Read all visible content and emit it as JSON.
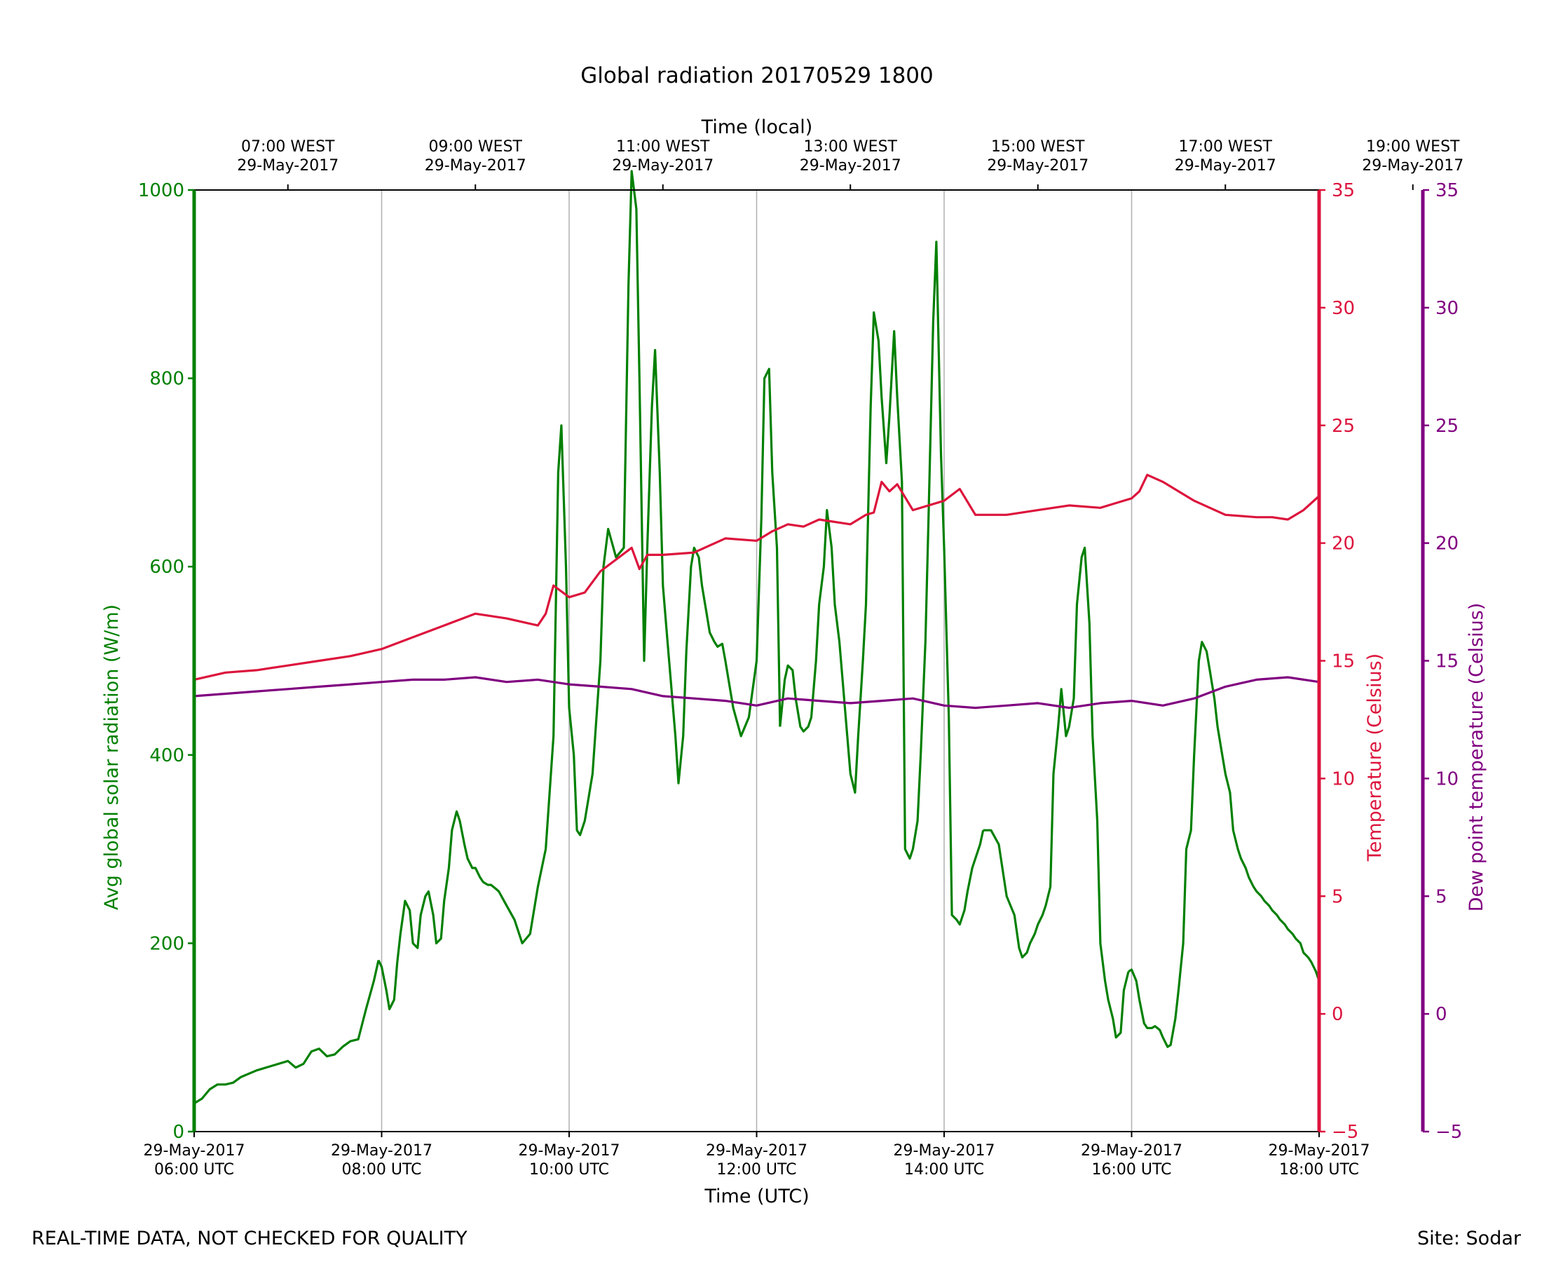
{
  "footer": {
    "left_note": "REAL-TIME DATA, NOT CHECKED FOR QUALITY",
    "site": "Site: Sodar"
  },
  "colors": {
    "radiation": "#008000",
    "temperature": "#dc143c",
    "dewpoint": "#800080",
    "grid": "#b0b0b0",
    "axis": "#000000"
  },
  "chart_data": {
    "type": "line",
    "title": "Global radiation 20170529 1800",
    "xlabel": "Time (UTC)",
    "x2label": "Time (local)",
    "xlim": [
      "2017-05-29 06:00 UTC",
      "2017-05-29 18:00 UTC"
    ],
    "grid": "vertical lines at bottom ticks",
    "x_ticks": [
      {
        "time": "2017-05-29 06:00",
        "date": "29-May-2017",
        "label": "06:00 UTC"
      },
      {
        "time": "2017-05-29 08:00",
        "date": "29-May-2017",
        "label": "08:00 UTC"
      },
      {
        "time": "2017-05-29 10:00",
        "date": "29-May-2017",
        "label": "10:00 UTC"
      },
      {
        "time": "2017-05-29 12:00",
        "date": "29-May-2017",
        "label": "12:00 UTC"
      },
      {
        "time": "2017-05-29 14:00",
        "date": "29-May-2017",
        "label": "14:00 UTC"
      },
      {
        "time": "2017-05-29 16:00",
        "date": "29-May-2017",
        "label": "16:00 UTC"
      },
      {
        "time": "2017-05-29 18:00",
        "date": "29-May-2017",
        "label": "18:00 UTC"
      }
    ],
    "x2_ticks": [
      {
        "time": "2017-05-29 07:00",
        "label": "07:00 WEST",
        "date": "29-May-2017"
      },
      {
        "time": "2017-05-29 09:00",
        "label": "09:00 WEST",
        "date": "29-May-2017"
      },
      {
        "time": "2017-05-29 11:00",
        "label": "11:00 WEST",
        "date": "29-May-2017"
      },
      {
        "time": "2017-05-29 13:00",
        "label": "13:00 WEST",
        "date": "29-May-2017"
      },
      {
        "time": "2017-05-29 15:00",
        "label": "15:00 WEST",
        "date": "29-May-2017"
      },
      {
        "time": "2017-05-29 17:00",
        "label": "17:00 WEST",
        "date": "29-May-2017"
      },
      {
        "time": "2017-05-29 19:00",
        "label": "19:00 WEST",
        "date": "29-May-2017"
      }
    ],
    "axes": {
      "radiation": {
        "label": "Avg global solar radiation (W/m)",
        "ylim": [
          0,
          1000
        ],
        "ticks": [
          "0",
          "200",
          "400",
          "600",
          "800",
          "1000"
        ],
        "side": "left"
      },
      "temperature": {
        "label": "Temperature (Celsius)",
        "ylim": [
          -5,
          35
        ],
        "ticks": [
          "−5",
          "0",
          "5",
          "10",
          "15",
          "20",
          "25",
          "30",
          "35"
        ],
        "side": "right"
      },
      "dewpoint": {
        "label": "Dew point temperature (Celsius)",
        "ylim": [
          -5,
          35
        ],
        "ticks": [
          "−5",
          "0",
          "5",
          "10",
          "15",
          "20",
          "25",
          "30",
          "35"
        ],
        "side": "right-outer"
      }
    },
    "series": [
      {
        "axis": "radiation",
        "segments": [
          {
            "x": [
              "06:00",
              "06:05",
              "06:10",
              "06:15",
              "06:20",
              "06:25",
              "06:30",
              "06:40",
              "06:50",
              "07:00",
              "07:05",
              "07:10",
              "07:15",
              "07:20",
              "07:25",
              "07:30",
              "07:35",
              "07:40",
              "07:45",
              "07:50",
              "07:55",
              "07:58"
            ],
            "y": [
              30,
              35,
              45,
              50,
              50,
              52,
              58,
              65,
              70,
              75,
              68,
              72,
              85,
              88,
              80,
              82,
              90,
              96,
              98,
              130,
              160,
              182
            ]
          },
          {
            "x": [
              "07:58",
              "08:00",
              "08:03",
              "08:05",
              "08:08",
              "08:10",
              "08:12",
              "08:15",
              "08:18",
              "08:20",
              "08:23",
              "08:25",
              "08:28",
              "08:30",
              "08:33",
              "08:35",
              "08:38",
              "08:40",
              "08:43",
              "08:45",
              "08:48",
              "08:50",
              "08:53",
              "08:55",
              "08:58",
              "09:00",
              "09:03",
              "09:05",
              "09:08",
              "09:10",
              "09:13",
              "09:15",
              "09:20",
              "09:25",
              "09:30",
              "09:35",
              "09:40",
              "09:45"
            ],
            "y": [
              182,
              175,
              150,
              130,
              140,
              180,
              210,
              245,
              235,
              200,
              195,
              230,
              250,
              255,
              230,
              200,
              205,
              245,
              280,
              320,
              340,
              330,
              305,
              290,
              280,
              280,
              270,
              265,
              262,
              262,
              258,
              255,
              240,
              225,
              200,
              210,
              260,
              300
            ]
          },
          {
            "x": [
              "09:45",
              "09:50",
              "09:53",
              "09:55",
              "09:58",
              "10:00",
              "10:03",
              "10:05",
              "10:07",
              "10:10",
              "10:15",
              "10:20",
              "10:22",
              "10:25",
              "10:30",
              "10:35",
              "10:38",
              "10:40",
              "10:43",
              "10:45"
            ],
            "y": [
              300,
              420,
              700,
              750,
              600,
              450,
              400,
              320,
              315,
              330,
              380,
              500,
              600,
              640,
              610,
              620,
              900,
              1020,
              980,
              800
            ]
          },
          {
            "x": [
              "10:45",
              "10:48",
              "10:50",
              "10:53",
              "10:55",
              "10:58",
              "11:00",
              "11:03",
              "11:05",
              "11:08",
              "11:10",
              "11:13",
              "11:15",
              "11:18",
              "11:20",
              "11:23",
              "11:25",
              "11:28",
              "11:30",
              "11:33",
              "11:35",
              "11:38",
              "11:40",
              "11:45",
              "11:50",
              "11:55",
              "12:00",
              "12:03",
              "12:05",
              "12:08",
              "12:10",
              "12:13",
              "12:15"
            ],
            "y": [
              800,
              500,
              620,
              770,
              830,
              700,
              580,
              520,
              480,
              420,
              370,
              420,
              510,
              600,
              620,
              610,
              580,
              550,
              530,
              520,
              515,
              518,
              500,
              450,
              420,
              440,
              500,
              650,
              800,
              810,
              700,
              620,
              430
            ]
          },
          {
            "x": [
              "12:15",
              "12:18",
              "12:20",
              "12:23",
              "12:25",
              "12:28",
              "12:30",
              "12:33",
              "12:35",
              "12:38",
              "12:40",
              "12:43",
              "12:45",
              "12:48",
              "12:50",
              "12:53",
              "12:55",
              "12:58",
              "13:00",
              "13:03",
              "13:05",
              "13:08",
              "13:10"
            ],
            "y": [
              430,
              480,
              495,
              490,
              460,
              430,
              425,
              430,
              440,
              500,
              560,
              600,
              660,
              620,
              560,
              520,
              480,
              420,
              380,
              360,
              420,
              500,
              560
            ]
          },
          {
            "x": [
              "13:10",
              "13:13",
              "13:15",
              "13:18",
              "13:20",
              "13:23",
              "13:25",
              "13:28",
              "13:30",
              "13:33",
              "13:35",
              "13:38",
              "13:40",
              "13:43",
              "13:45",
              "13:48",
              "13:50",
              "13:53",
              "13:55",
              "13:58",
              "14:00",
              "14:03",
              "14:05",
              "14:08",
              "14:10",
              "14:13",
              "14:15",
              "14:18",
              "14:20",
              "14:23",
              "14:25"
            ],
            "y": [
              560,
              770,
              870,
              840,
              780,
              710,
              760,
              850,
              780,
              690,
              300,
              290,
              300,
              330,
              400,
              520,
              650,
              860,
              945,
              720,
              620,
              440,
              230,
              225,
              220,
              235,
              255,
              280,
              290,
              305,
              320
            ]
          },
          {
            "x": [
              "14:25",
              "14:30",
              "14:35",
              "14:40",
              "14:45",
              "14:48",
              "14:50",
              "14:53",
              "14:55",
              "14:58",
              "15:00",
              "15:03",
              "15:05",
              "15:08",
              "15:10",
              "15:13",
              "15:15",
              "15:18",
              "15:20",
              "15:23",
              "15:25",
              "15:28",
              "15:30",
              "15:33",
              "15:35",
              "15:38",
              "15:40",
              "15:43",
              "15:45",
              "15:48",
              "15:50",
              "15:53",
              "15:55",
              "15:58"
            ],
            "y": [
              320,
              320,
              305,
              250,
              230,
              195,
              185,
              190,
              200,
              210,
              220,
              230,
              240,
              260,
              380,
              430,
              470,
              420,
              430,
              460,
              560,
              610,
              620,
              540,
              420,
              330,
              200,
              160,
              140,
              120,
              100,
              105,
              150,
              170
            ]
          },
          {
            "x": [
              "15:58",
              "16:00",
              "16:03",
              "16:05",
              "16:08",
              "16:10",
              "16:13",
              "16:15",
              "16:18",
              "16:20",
              "16:23",
              "16:25",
              "16:28",
              "16:30",
              "16:33",
              "16:35",
              "16:38",
              "16:40",
              "16:43",
              "16:45",
              "16:48",
              "16:50",
              "16:53",
              "16:55",
              "16:58",
              "17:00",
              "17:03",
              "17:05",
              "17:08",
              "17:10",
              "17:13",
              "17:15",
              "17:18",
              "17:20",
              "17:23",
              "17:25",
              "17:28",
              "17:30",
              "17:33",
              "17:35",
              "17:38",
              "17:40",
              "17:43",
              "17:45",
              "17:48",
              "17:50",
              "17:53",
              "17:55",
              "17:58",
              "18:00"
            ],
            "y": [
              170,
              172,
              160,
              140,
              115,
              110,
              110,
              112,
              108,
              100,
              90,
              92,
              120,
              150,
              200,
              300,
              320,
              400,
              500,
              520,
              510,
              490,
              460,
              430,
              400,
              380,
              360,
              320,
              300,
              290,
              280,
              270,
              260,
              255,
              250,
              245,
              240,
              235,
              230,
              225,
              220,
              215,
              210,
              205,
              200,
              190,
              185,
              180,
              170,
              160
            ]
          }
        ]
      },
      {
        "axis": "temperature",
        "segments": [
          {
            "x": [
              "06:00",
              "06:20",
              "06:40",
              "07:00",
              "07:20",
              "07:40",
              "08:00",
              "08:20",
              "08:40",
              "09:00",
              "09:20",
              "09:40",
              "09:45",
              "09:50",
              "10:00",
              "10:10",
              "10:20",
              "10:30",
              "10:40",
              "10:45",
              "10:50",
              "11:00",
              "11:20",
              "11:40",
              "12:00",
              "12:10",
              "12:20",
              "12:30",
              "12:40",
              "13:00",
              "13:10",
              "13:15",
              "13:20",
              "13:25",
              "13:30",
              "13:40",
              "14:00",
              "14:10",
              "14:20",
              "14:40",
              "15:00",
              "15:20",
              "15:40",
              "15:50",
              "16:00",
              "16:05",
              "16:10",
              "16:20",
              "16:40",
              "17:00",
              "17:20",
              "17:30",
              "17:40",
              "17:50",
              "18:00"
            ],
            "y": [
              14.2,
              14.5,
              14.6,
              14.8,
              15.0,
              15.2,
              15.5,
              16.0,
              16.5,
              17.0,
              16.8,
              16.5,
              17.0,
              18.2,
              17.7,
              17.9,
              18.8,
              19.3,
              19.8,
              18.9,
              19.5,
              19.5,
              19.6,
              20.2,
              20.1,
              20.5,
              20.8,
              20.7,
              21.0,
              20.8,
              21.2,
              21.3,
              22.6,
              22.2,
              22.5,
              21.4,
              21.8,
              22.3,
              21.2,
              21.2,
              21.4,
              21.6,
              21.5,
              21.7,
              21.9,
              22.2,
              22.9,
              22.6,
              21.8,
              21.2,
              21.1,
              21.1,
              21.0,
              21.4,
              22.0
            ]
          }
        ]
      },
      {
        "axis": "dewpoint",
        "segments": [
          {
            "x": [
              "06:00",
              "06:20",
              "06:40",
              "07:00",
              "07:20",
              "07:40",
              "08:00",
              "08:20",
              "08:40",
              "09:00",
              "09:20",
              "09:40",
              "10:00",
              "10:20",
              "10:40",
              "11:00",
              "11:20",
              "11:40",
              "12:00",
              "12:20",
              "12:40",
              "13:00",
              "13:20",
              "13:40",
              "14:00",
              "14:20",
              "14:40",
              "15:00",
              "15:20",
              "15:40",
              "16:00",
              "16:20",
              "16:40",
              "17:00",
              "17:20",
              "17:40",
              "18:00"
            ],
            "y": [
              13.5,
              13.6,
              13.7,
              13.8,
              13.9,
              14.0,
              14.1,
              14.2,
              14.2,
              14.3,
              14.1,
              14.2,
              14.0,
              13.9,
              13.8,
              13.5,
              13.4,
              13.3,
              13.1,
              13.4,
              13.3,
              13.2,
              13.3,
              13.4,
              13.1,
              13.0,
              13.1,
              13.2,
              13.0,
              13.2,
              13.3,
              13.1,
              13.4,
              13.9,
              14.2,
              14.3,
              14.1
            ]
          }
        ]
      }
    ]
  }
}
